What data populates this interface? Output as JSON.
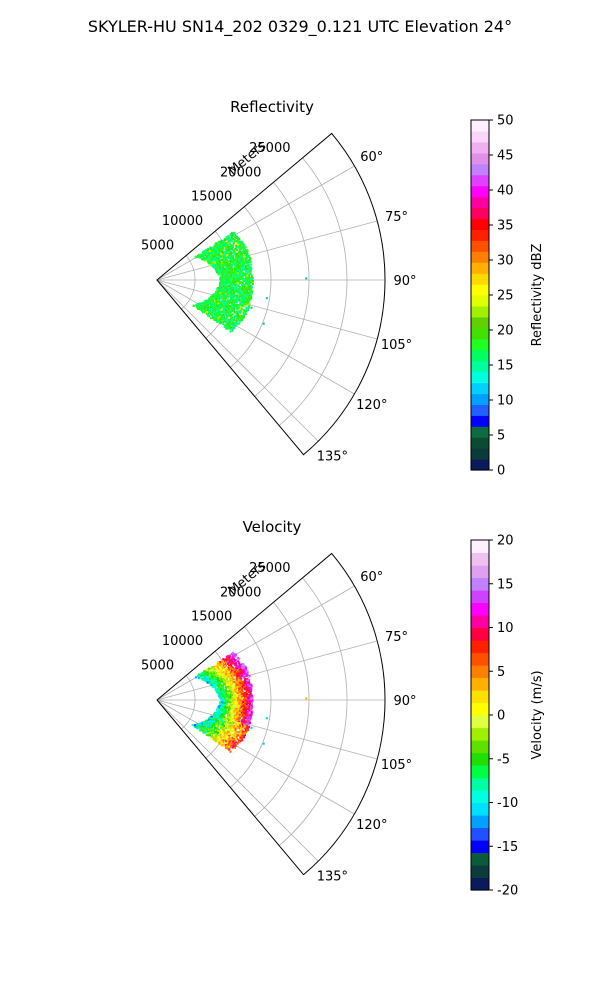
{
  "figure": {
    "title": "SKYLER-HU  SN14_202  0329_0.121 UTC Elevation 24°"
  },
  "colors": {
    "grid": "#b0b0b0",
    "spine": "#000000",
    "background": "#ffffff"
  },
  "chart_data": [
    {
      "type": "polar-sector",
      "title": "Reflectivity",
      "radial_label": "Meters",
      "radial_ticks": [
        "5000",
        "10000",
        "15000",
        "20000",
        "25000"
      ],
      "radial_tick_values": [
        5000,
        10000,
        15000,
        20000,
        25000
      ],
      "rlim": [
        0,
        30000
      ],
      "angle_ticks": [
        "60°",
        "75°",
        "90°",
        "105°",
        "120°",
        "135°"
      ],
      "angle_tick_values": [
        60,
        75,
        90,
        105,
        120,
        135
      ],
      "theta_range_deg": [
        50,
        140
      ],
      "grid": true,
      "colorbar": {
        "label": "Reflectivity dBZ",
        "ticks": [
          "0",
          "5",
          "10",
          "15",
          "20",
          "25",
          "30",
          "35",
          "40",
          "45",
          "50"
        ],
        "range": [
          0,
          50
        ],
        "colormap": "pyart_NWSRef"
      },
      "echo_band": {
        "azimuth_deg": [
          57,
          125
        ],
        "range_m": [
          4000,
          12500
        ],
        "dominant_value": "15-20 dBZ"
      }
    },
    {
      "type": "polar-sector",
      "title": "Velocity",
      "radial_label": "Meters",
      "radial_ticks": [
        "5000",
        "10000",
        "15000",
        "20000",
        "25000"
      ],
      "radial_tick_values": [
        5000,
        10000,
        15000,
        20000,
        25000
      ],
      "rlim": [
        0,
        30000
      ],
      "angle_ticks": [
        "60°",
        "75°",
        "90°",
        "105°",
        "120°",
        "135°"
      ],
      "angle_tick_values": [
        60,
        75,
        90,
        105,
        120,
        135
      ],
      "theta_range_deg": [
        50,
        140
      ],
      "grid": true,
      "colorbar": {
        "label": "Velocity (m/s)",
        "ticks": [
          "-20",
          "-15",
          "-10",
          "-5",
          "0",
          "5",
          "10",
          "15",
          "20"
        ],
        "range": [
          -20,
          20
        ],
        "colormap": "pyart_BuDRd"
      },
      "echo_band": {
        "azimuth_deg": [
          57,
          125
        ],
        "range_m": [
          4000,
          12500
        ],
        "inner_value": "-10 m/s",
        "outer_value": "10 to 15 m/s"
      }
    }
  ]
}
